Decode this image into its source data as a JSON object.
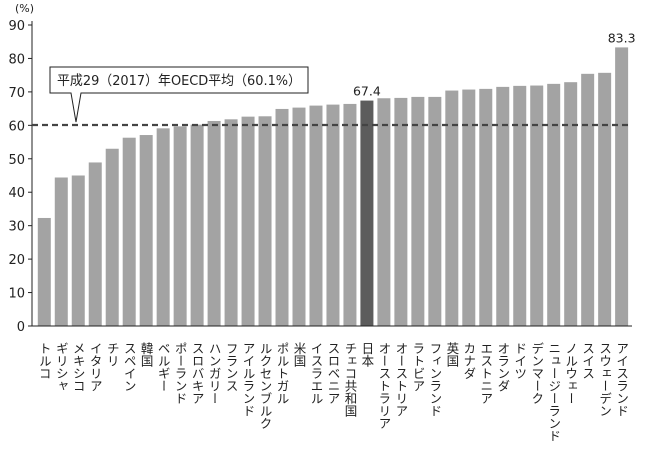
{
  "chart_data": {
    "type": "bar",
    "unit_label": "(%)",
    "ylim": [
      0,
      90
    ],
    "yticks": [
      0,
      10,
      20,
      30,
      40,
      50,
      60,
      70,
      80,
      90
    ],
    "grid": false,
    "categories": [
      "トルコ",
      "ギリシャ",
      "メキシコ",
      "イタリア",
      "チリ",
      "スペイン",
      "韓国",
      "ベルギー",
      "ポーランド",
      "スロバキア",
      "ハンガリー",
      "フランス",
      "アイルランド",
      "ルクセンブルク",
      "ポルトガル",
      "米国",
      "イスラエル",
      "スロベニア",
      "チェコ共和国",
      "日本",
      "オーストラリア",
      "オーストリア",
      "ラトビア",
      "フィンランド",
      "英国",
      "カナダ",
      "エストニア",
      "オランダ",
      "ドイツ",
      "デンマーク",
      "ニュージーランド",
      "ノルウェー",
      "スイス",
      "スウェーデン",
      "アイスランド"
    ],
    "values": [
      32.3,
      44.4,
      45.0,
      48.9,
      53.0,
      56.3,
      57.1,
      59.1,
      59.7,
      60.2,
      61.3,
      61.8,
      62.6,
      62.7,
      64.9,
      65.3,
      65.9,
      66.2,
      66.4,
      67.4,
      68.1,
      68.2,
      68.5,
      68.5,
      70.4,
      70.7,
      70.9,
      71.5,
      71.8,
      71.9,
      72.4,
      72.9,
      75.4,
      75.7,
      83.3
    ],
    "highlight_category": "日本",
    "data_labels": [
      {
        "category": "日本",
        "text": "67.4"
      },
      {
        "category": "アイスランド",
        "text": "83.3"
      }
    ],
    "reference_line": {
      "value": 60.1,
      "style": "dashed",
      "label": "平成29（2017）年OECD平均（60.1%）"
    },
    "colors": {
      "bar": "#a3a3a3",
      "highlight_bar": "#5c5c5c",
      "reference_line": "#444444",
      "axis": "#222222"
    }
  }
}
